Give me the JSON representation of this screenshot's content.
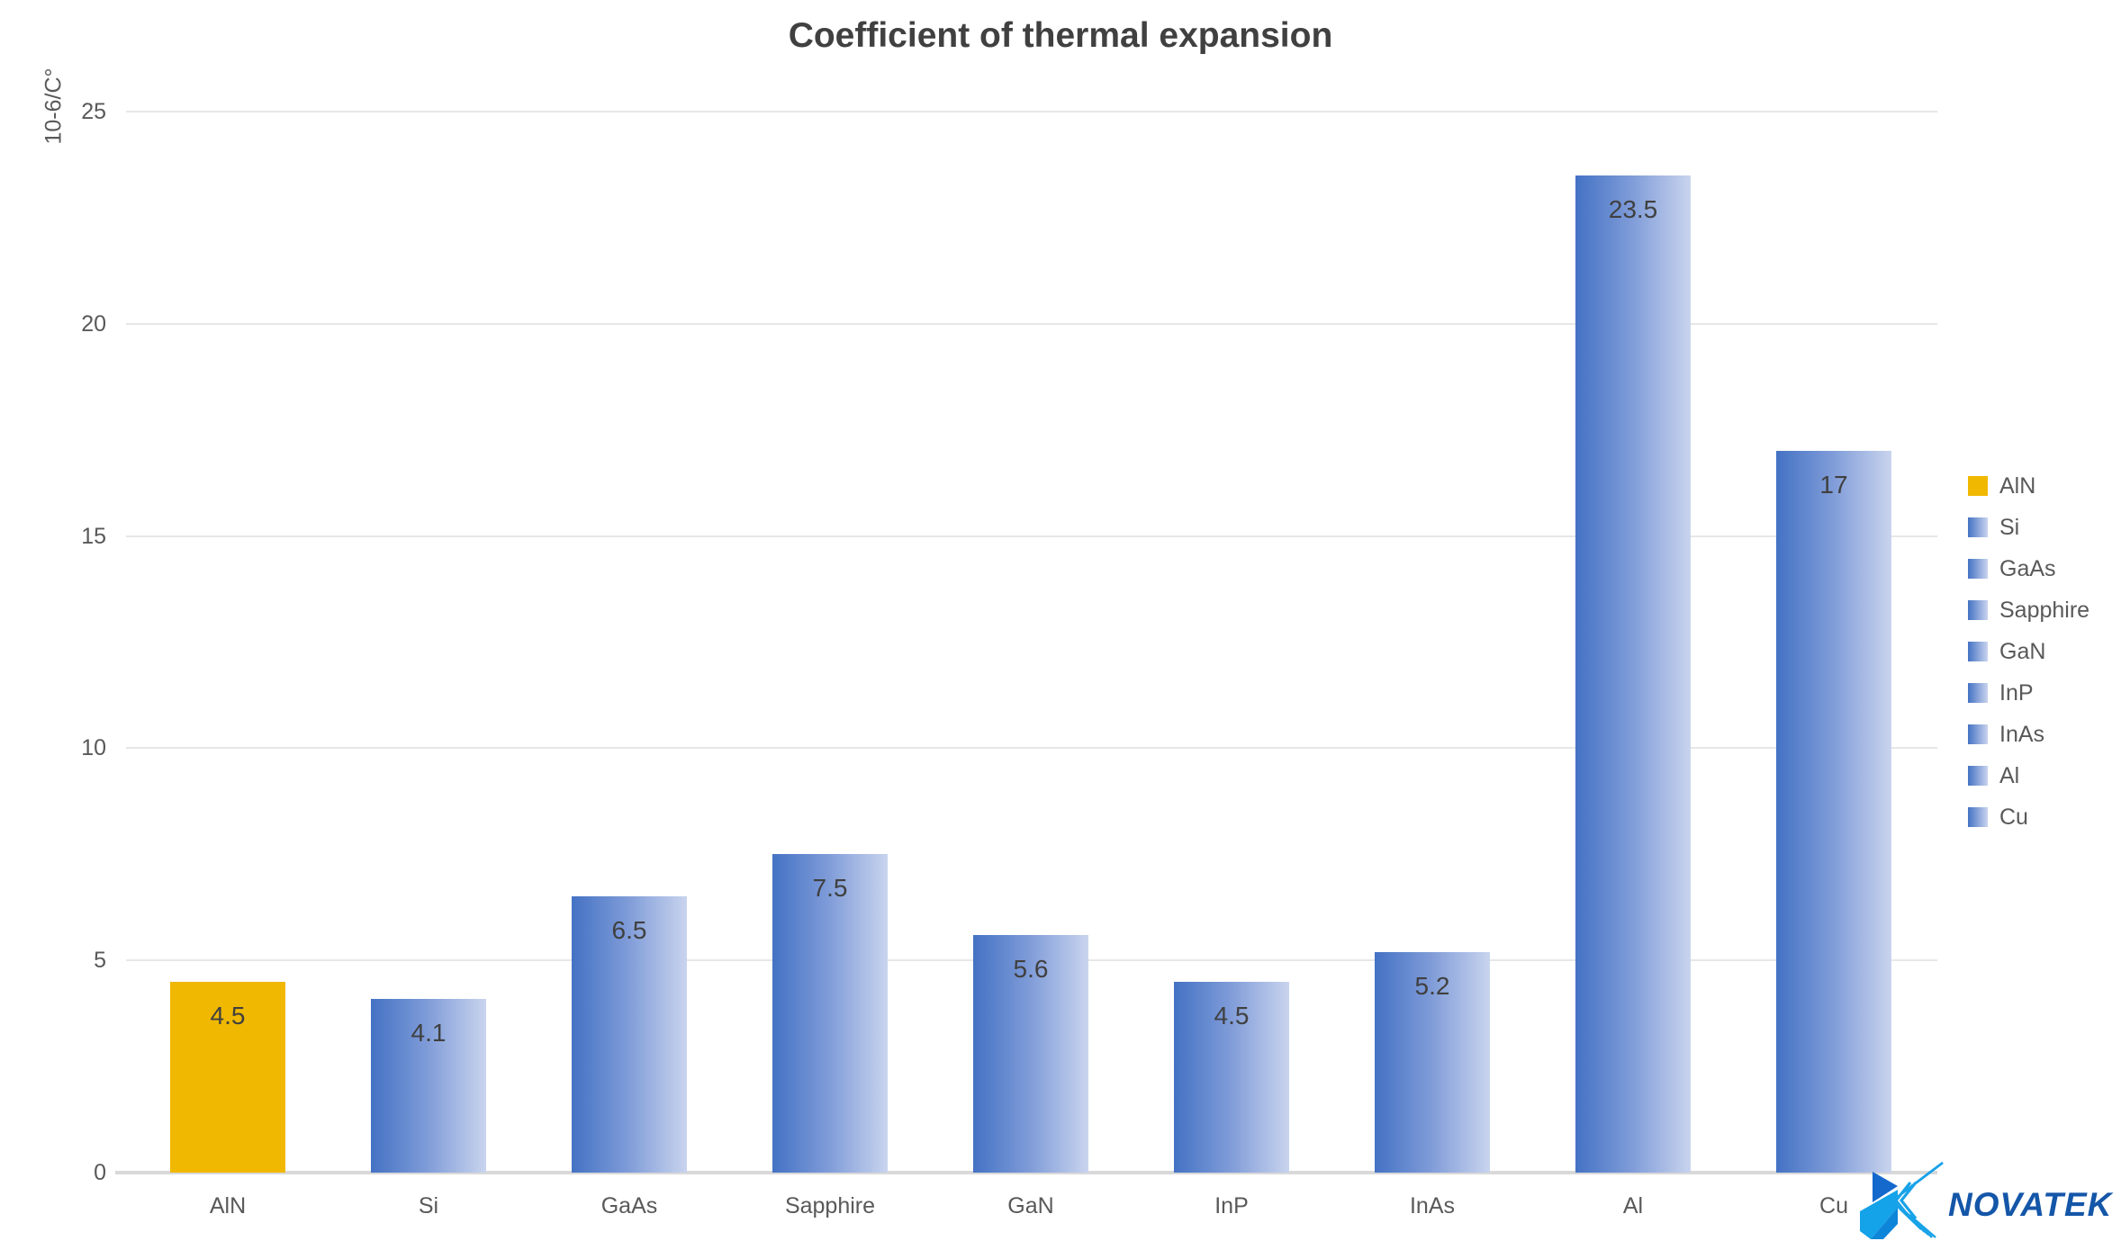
{
  "title": "Coefficient of thermal expansion",
  "y_axis": {
    "label": "10-6/C°"
  },
  "chart_data": {
    "type": "bar",
    "title": "Coefficient of thermal expansion",
    "xlabel": "",
    "ylabel": "10-6/C°",
    "categories": [
      "AlN",
      "Si",
      "GaAs",
      "Sapphire",
      "GaN",
      "InP",
      "InAs",
      "Al",
      "Cu"
    ],
    "values": [
      4.5,
      4.1,
      6.5,
      7.5,
      5.6,
      4.5,
      5.2,
      23.5,
      17
    ],
    "value_labels": [
      "4.5",
      "4.1",
      "6.5",
      "7.5",
      "5.6",
      "4.5",
      "5.2",
      "23.5",
      "17"
    ],
    "ylim": [
      0,
      25
    ],
    "yticks": [
      0,
      5,
      10,
      15,
      20,
      25
    ],
    "grid": "horizontal",
    "legend_position": "right",
    "highlight_category": "AlN"
  },
  "legend": {
    "items": [
      {
        "label": "AlN",
        "swatch": "gold"
      },
      {
        "label": "Si",
        "swatch": "blue"
      },
      {
        "label": "GaAs",
        "swatch": "blue"
      },
      {
        "label": "Sapphire",
        "swatch": "blue"
      },
      {
        "label": "GaN",
        "swatch": "blue"
      },
      {
        "label": "InP",
        "swatch": "blue"
      },
      {
        "label": "InAs",
        "swatch": "blue"
      },
      {
        "label": "Al",
        "swatch": "blue"
      },
      {
        "label": "Cu",
        "swatch": "blue"
      }
    ]
  },
  "logo": {
    "text": "NOVATEK"
  },
  "colors": {
    "gold": "#F0B800",
    "blue_start": "#4472C4",
    "blue_end": "#C9D4EE",
    "title_text": "#404040",
    "axis_text": "#595959",
    "gridline": "#E7E7E7",
    "baseline": "#D9D9D9",
    "logo_blue": "#1456A8",
    "logo_cyan": "#18A2E8",
    "logo_mid_blue": "#1568CC",
    "logo_azure": "#14A2E8",
    "logo_deep_azure": "#0D85D8"
  }
}
